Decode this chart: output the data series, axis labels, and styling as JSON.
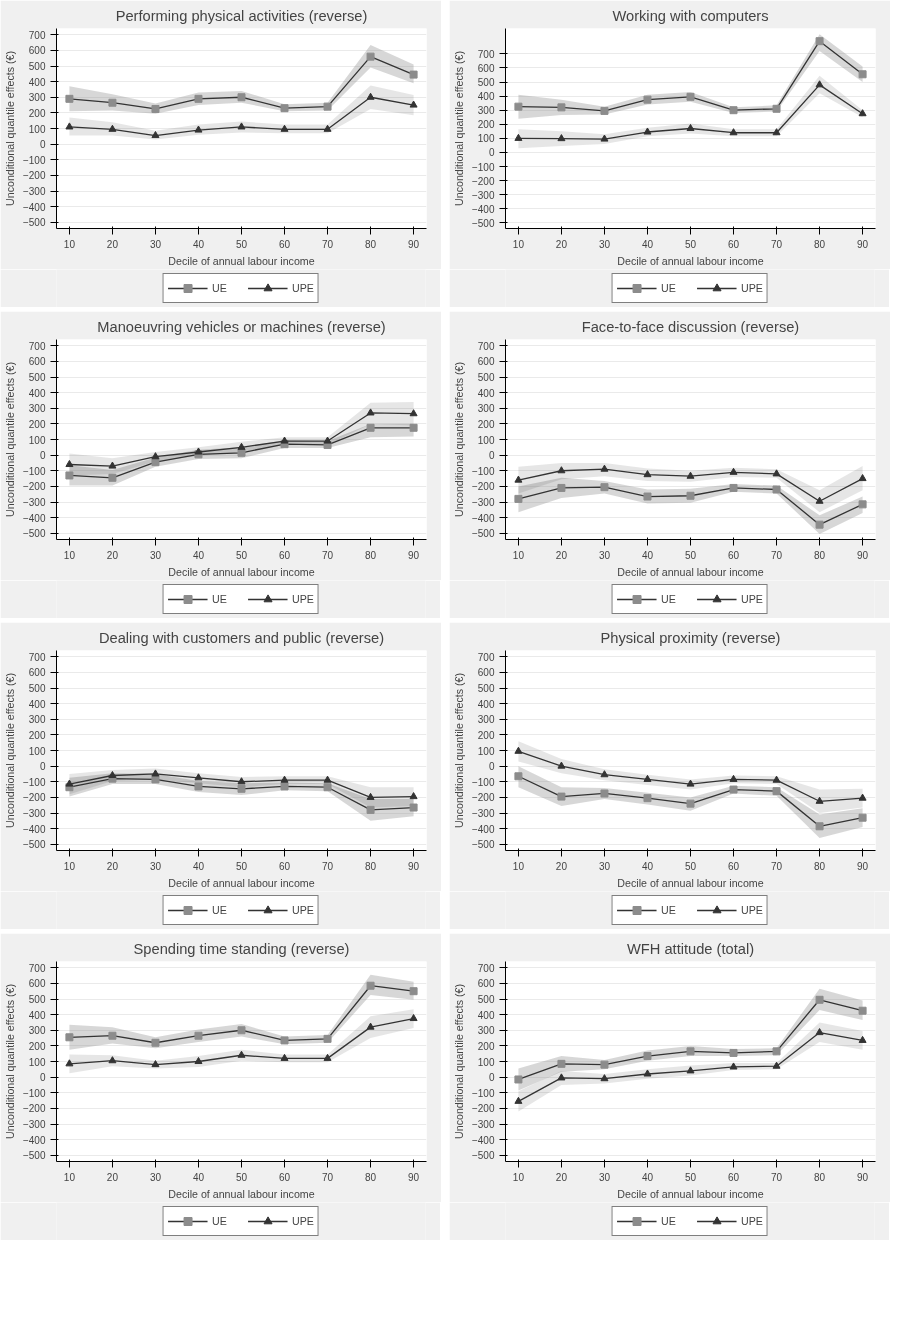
{
  "chart_data": [
    {
      "type": "line",
      "title": "Performing physical activities (reverse)",
      "xlabel": "Decile of annual labour income",
      "ylabel": "Unconditional quantile effects (€)",
      "x": [
        10,
        20,
        30,
        40,
        50,
        60,
        70,
        80,
        90
      ],
      "xlim": [
        7,
        93
      ],
      "xticks": [
        10,
        20,
        30,
        40,
        50,
        60,
        70,
        80,
        90
      ],
      "ylim": [
        -540,
        740
      ],
      "yticks": [
        -500,
        -400,
        -300,
        -200,
        -100,
        0,
        100,
        200,
        300,
        400,
        500,
        600,
        700
      ],
      "grid": "y",
      "legend": "bottom",
      "line_style": "solid",
      "series": [
        {
          "name": "UE",
          "color": "#8c8c8c",
          "marker": "square",
          "values": [
            290,
            265,
            225,
            290,
            300,
            230,
            240,
            560,
            445
          ],
          "lower": [
            210,
            215,
            195,
            250,
            265,
            210,
            215,
            490,
            390
          ],
          "upper": [
            370,
            320,
            260,
            330,
            340,
            255,
            265,
            635,
            510
          ]
        },
        {
          "name": "UPE",
          "color": "#333333",
          "marker": "triangle",
          "values": [
            110,
            95,
            55,
            90,
            110,
            95,
            95,
            300,
            250
          ],
          "lower": [
            55,
            55,
            30,
            60,
            75,
            70,
            70,
            225,
            185
          ],
          "upper": [
            170,
            140,
            85,
            125,
            145,
            125,
            125,
            375,
            315
          ]
        }
      ]
    },
    {
      "type": "line",
      "title": "Working with computers",
      "xlabel": "Decile of annual labour income",
      "ylabel": "Unconditional quantile effects (€)",
      "x": [
        10,
        20,
        30,
        40,
        50,
        60,
        70,
        80,
        90
      ],
      "xlim": [
        7,
        93
      ],
      "xticks": [
        10,
        20,
        30,
        40,
        50,
        60,
        70,
        80,
        90
      ],
      "ylim": [
        -540,
        880
      ],
      "yticks": [
        -500,
        -400,
        -300,
        -200,
        -100,
        0,
        100,
        200,
        300,
        400,
        500,
        600,
        700
      ],
      "grid": "y",
      "legend": "bottom",
      "line_style": "solid",
      "series": [
        {
          "name": "UE",
          "color": "#8c8c8c",
          "marker": "square",
          "values": [
            325,
            320,
            295,
            375,
            395,
            300,
            310,
            790,
            555
          ],
          "lower": [
            240,
            265,
            270,
            340,
            360,
            280,
            290,
            720,
            500
          ],
          "upper": [
            410,
            375,
            325,
            410,
            430,
            320,
            335,
            840,
            610
          ]
        },
        {
          "name": "UPE",
          "color": "#333333",
          "marker": "triangle",
          "values": [
            100,
            98,
            95,
            145,
            170,
            140,
            140,
            480,
            275
          ],
          "lower": [
            30,
            45,
            60,
            115,
            135,
            115,
            115,
            420,
            250
          ],
          "upper": [
            165,
            150,
            130,
            175,
            205,
            165,
            165,
            545,
            300
          ]
        }
      ]
    },
    {
      "type": "line",
      "title": "Manoeuvring vehicles or machines (reverse)",
      "xlabel": "Decile of annual labour income",
      "ylabel": "Unconditional quantile effects (€)",
      "x": [
        10,
        20,
        30,
        40,
        50,
        60,
        70,
        80,
        90
      ],
      "xlim": [
        7,
        93
      ],
      "xticks": [
        10,
        20,
        30,
        40,
        50,
        60,
        70,
        80,
        90
      ],
      "ylim": [
        -540,
        740
      ],
      "yticks": [
        -500,
        -400,
        -300,
        -200,
        -100,
        0,
        100,
        200,
        300,
        400,
        500,
        600,
        700
      ],
      "grid": "y",
      "legend": "bottom",
      "line_style": "solid",
      "series": [
        {
          "name": "UE",
          "color": "#8c8c8c",
          "marker": "square",
          "values": [
            -130,
            -145,
            -45,
            5,
            15,
            70,
            65,
            175,
            175
          ],
          "lower": [
            -195,
            -195,
            -75,
            -25,
            -20,
            45,
            45,
            115,
            120
          ],
          "upper": [
            -65,
            -95,
            -15,
            35,
            50,
            95,
            90,
            200,
            200
          ]
        },
        {
          "name": "UPE",
          "color": "#333333",
          "marker": "triangle",
          "values": [
            -60,
            -70,
            -10,
            20,
            50,
            90,
            90,
            270,
            265
          ],
          "lower": [
            -130,
            -120,
            -40,
            -5,
            20,
            65,
            65,
            200,
            190
          ],
          "upper": [
            10,
            -20,
            20,
            50,
            85,
            115,
            115,
            335,
            340
          ]
        }
      ]
    },
    {
      "type": "line",
      "title": "Face-to-face discussion (reverse)",
      "xlabel": "Decile of annual labour income",
      "ylabel": "Unconditional quantile effects (€)",
      "x": [
        10,
        20,
        30,
        40,
        50,
        60,
        70,
        80,
        90
      ],
      "xlim": [
        7,
        93
      ],
      "xticks": [
        10,
        20,
        30,
        40,
        50,
        60,
        70,
        80,
        90
      ],
      "ylim": [
        -540,
        740
      ],
      "yticks": [
        -500,
        -400,
        -300,
        -200,
        -100,
        0,
        100,
        200,
        300,
        400,
        500,
        600,
        700
      ],
      "grid": "y",
      "legend": "bottom",
      "line_style": "solid",
      "series": [
        {
          "name": "UE",
          "color": "#8c8c8c",
          "marker": "square",
          "values": [
            -280,
            -210,
            -205,
            -265,
            -260,
            -210,
            -220,
            -445,
            -315
          ],
          "lower": [
            -365,
            -275,
            -245,
            -310,
            -305,
            -235,
            -245,
            -505,
            -370
          ],
          "upper": [
            -200,
            -145,
            -165,
            -220,
            -215,
            -185,
            -195,
            -385,
            -265
          ]
        },
        {
          "name": "UPE",
          "color": "#333333",
          "marker": "triangle",
          "values": [
            -160,
            -100,
            -90,
            -125,
            -135,
            -110,
            -120,
            -295,
            -150
          ],
          "lower": [
            -245,
            -155,
            -135,
            -165,
            -170,
            -140,
            -145,
            -365,
            -225
          ],
          "upper": [
            -75,
            -50,
            -50,
            -85,
            -100,
            -80,
            -90,
            -225,
            -70
          ]
        }
      ]
    },
    {
      "type": "line",
      "title": "Dealing with customers and public (reverse)",
      "xlabel": "Decile of annual labour income",
      "ylabel": "Unconditional quantile effects (€)",
      "x": [
        10,
        20,
        30,
        40,
        50,
        60,
        70,
        80,
        90
      ],
      "xlim": [
        7,
        93
      ],
      "xticks": [
        10,
        20,
        30,
        40,
        50,
        60,
        70,
        80,
        90
      ],
      "ylim": [
        -540,
        740
      ],
      "yticks": [
        -500,
        -400,
        -300,
        -200,
        -100,
        0,
        100,
        200,
        300,
        400,
        500,
        600,
        700
      ],
      "grid": "y",
      "legend": "bottom",
      "line_style": "solid",
      "series": [
        {
          "name": "UE",
          "color": "#8c8c8c",
          "marker": "square",
          "values": [
            -135,
            -80,
            -85,
            -130,
            -145,
            -130,
            -135,
            -280,
            -265
          ],
          "lower": [
            -195,
            -115,
            -115,
            -165,
            -185,
            -155,
            -160,
            -350,
            -320
          ],
          "upper": [
            -75,
            -45,
            -50,
            -95,
            -110,
            -105,
            -110,
            -210,
            -210
          ]
        },
        {
          "name": "UPE",
          "color": "#333333",
          "marker": "triangle",
          "values": [
            -115,
            -60,
            -50,
            -75,
            -100,
            -90,
            -90,
            -200,
            -195
          ],
          "lower": [
            -180,
            -95,
            -85,
            -110,
            -135,
            -115,
            -115,
            -265,
            -255
          ],
          "upper": [
            -50,
            -25,
            -15,
            -45,
            -70,
            -65,
            -65,
            -135,
            -135
          ]
        }
      ]
    },
    {
      "type": "line",
      "title": "Physical proximity (reverse)",
      "xlabel": "Decile of annual labour income",
      "ylabel": "Unconditional quantile effects (€)",
      "x": [
        10,
        20,
        30,
        40,
        50,
        60,
        70,
        80,
        90
      ],
      "xlim": [
        7,
        93
      ],
      "xticks": [
        10,
        20,
        30,
        40,
        50,
        60,
        70,
        80,
        90
      ],
      "ylim": [
        -540,
        740
      ],
      "yticks": [
        -500,
        -400,
        -300,
        -200,
        -100,
        0,
        100,
        200,
        300,
        400,
        500,
        600,
        700
      ],
      "grid": "y",
      "legend": "bottom",
      "line_style": "solid",
      "series": [
        {
          "name": "UE",
          "color": "#8c8c8c",
          "marker": "square",
          "values": [
            -65,
            -195,
            -175,
            -205,
            -240,
            -150,
            -160,
            -385,
            -330
          ],
          "lower": [
            -135,
            -255,
            -210,
            -245,
            -285,
            -175,
            -190,
            -460,
            -390
          ],
          "upper": [
            0,
            -135,
            -140,
            -170,
            -200,
            -125,
            -135,
            -310,
            -270
          ]
        },
        {
          "name": "UPE",
          "color": "#333333",
          "marker": "triangle",
          "values": [
            95,
            0,
            -55,
            -85,
            -115,
            -85,
            -90,
            -225,
            -205
          ],
          "lower": [
            30,
            -45,
            -90,
            -120,
            -150,
            -110,
            -115,
            -300,
            -265
          ],
          "upper": [
            160,
            45,
            -20,
            -55,
            -85,
            -60,
            -65,
            -150,
            -145
          ]
        }
      ]
    },
    {
      "type": "line",
      "title": "Spending time standing (reverse)",
      "xlabel": "Decile of annual labour income",
      "ylabel": "Unconditional quantile effects (€)",
      "x": [
        10,
        20,
        30,
        40,
        50,
        60,
        70,
        80,
        90
      ],
      "xlim": [
        7,
        93
      ],
      "xticks": [
        10,
        20,
        30,
        40,
        50,
        60,
        70,
        80,
        90
      ],
      "ylim": [
        -540,
        740
      ],
      "yticks": [
        -500,
        -400,
        -300,
        -200,
        -100,
        0,
        100,
        200,
        300,
        400,
        500,
        600,
        700
      ],
      "grid": "y",
      "legend": "bottom",
      "line_style": "solid",
      "series": [
        {
          "name": "UE",
          "color": "#8c8c8c",
          "marker": "square",
          "values": [
            255,
            265,
            220,
            265,
            300,
            235,
            245,
            585,
            550
          ],
          "lower": [
            175,
            215,
            185,
            225,
            260,
            210,
            220,
            525,
            495
          ],
          "upper": [
            335,
            320,
            255,
            305,
            340,
            260,
            270,
            655,
            610
          ]
        },
        {
          "name": "UPE",
          "color": "#333333",
          "marker": "triangle",
          "values": [
            85,
            105,
            80,
            100,
            140,
            120,
            120,
            320,
            375
          ],
          "lower": [
            25,
            70,
            55,
            65,
            105,
            95,
            95,
            250,
            315
          ],
          "upper": [
            145,
            140,
            105,
            135,
            175,
            145,
            145,
            390,
            435
          ]
        }
      ]
    },
    {
      "type": "line",
      "title": "WFH attitude (total)",
      "xlabel": "Decile of annual labour income",
      "ylabel": "Unconditional quantile effects (€)",
      "x": [
        10,
        20,
        30,
        40,
        50,
        60,
        70,
        80,
        90
      ],
      "xlim": [
        7,
        93
      ],
      "xticks": [
        10,
        20,
        30,
        40,
        50,
        60,
        70,
        80,
        90
      ],
      "ylim": [
        -540,
        740
      ],
      "yticks": [
        -500,
        -400,
        -300,
        -200,
        -100,
        0,
        100,
        200,
        300,
        400,
        500,
        600,
        700
      ],
      "grid": "y",
      "legend": "bottom",
      "line_style": "solid",
      "series": [
        {
          "name": "UE",
          "color": "#8c8c8c",
          "marker": "square",
          "values": [
            -15,
            85,
            80,
            135,
            165,
            155,
            165,
            495,
            425
          ],
          "lower": [
            -85,
            35,
            50,
            105,
            135,
            135,
            140,
            430,
            365
          ],
          "upper": [
            55,
            135,
            110,
            170,
            200,
            180,
            185,
            565,
            490
          ]
        },
        {
          "name": "UPE",
          "color": "#333333",
          "marker": "triangle",
          "values": [
            -155,
            -5,
            -10,
            20,
            40,
            65,
            70,
            285,
            235
          ],
          "lower": [
            -220,
            -50,
            -40,
            -10,
            10,
            45,
            50,
            225,
            175
          ],
          "upper": [
            -90,
            40,
            20,
            50,
            75,
            90,
            90,
            350,
            295
          ]
        }
      ]
    }
  ]
}
